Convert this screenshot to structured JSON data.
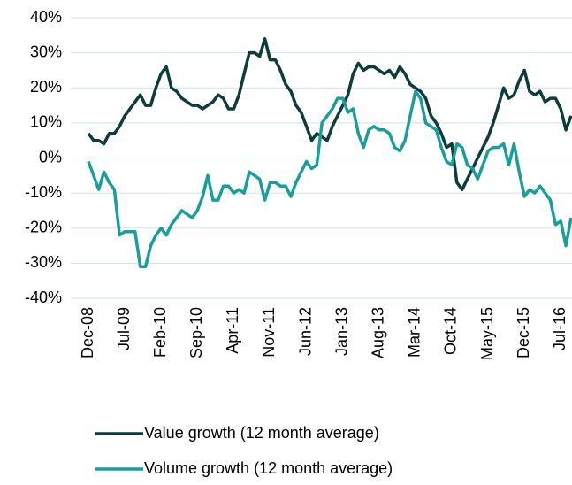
{
  "chart_data": {
    "type": "line",
    "categories": [
      "Dec-08",
      null,
      null,
      null,
      null,
      null,
      null,
      "Jul-09",
      null,
      null,
      null,
      null,
      null,
      null,
      "Feb-10",
      null,
      null,
      null,
      null,
      null,
      null,
      "Sep-10",
      null,
      null,
      null,
      null,
      null,
      null,
      "Apr-11",
      null,
      null,
      null,
      null,
      null,
      null,
      "Nov-11",
      null,
      null,
      null,
      null,
      null,
      null,
      "Jun-12",
      null,
      null,
      null,
      null,
      null,
      null,
      "Jan-13",
      null,
      null,
      null,
      null,
      null,
      null,
      "Aug-13",
      null,
      null,
      null,
      null,
      null,
      null,
      "Mar-14",
      null,
      null,
      null,
      null,
      null,
      null,
      "Oct-14",
      null,
      null,
      null,
      null,
      null,
      null,
      "May-15",
      null,
      null,
      null,
      null,
      null,
      null,
      "Dec-15",
      null,
      null,
      null,
      null,
      null,
      null,
      "Jul-16",
      null,
      null
    ],
    "series": [
      {
        "name": "Value growth (12 month average)",
        "color": "#0d3d3a",
        "values": [
          7,
          5,
          5,
          4,
          7,
          7,
          9,
          12,
          14,
          16,
          18,
          15,
          15,
          20,
          24,
          26,
          20,
          19,
          17,
          16,
          15,
          15,
          14,
          15,
          16,
          18,
          17,
          14,
          14,
          18,
          24,
          30,
          30,
          29,
          34,
          28,
          28,
          25,
          21,
          19,
          15,
          13,
          9,
          5,
          7,
          6,
          5,
          9,
          12,
          15,
          18,
          24,
          27,
          25,
          26,
          26,
          25,
          24,
          25,
          23,
          26,
          24,
          21,
          20,
          19,
          17,
          12,
          10,
          7,
          3,
          4,
          -7,
          -9,
          -6,
          -3,
          0,
          3,
          6,
          10,
          15,
          20,
          17,
          18,
          22,
          25,
          19,
          18,
          19,
          16,
          17,
          17,
          14,
          8,
          12
        ]
      },
      {
        "name": "Volume growth (12 month average)",
        "color": "#1a9e99",
        "values": [
          -1,
          -5,
          -9,
          -4,
          -7,
          -9,
          -22,
          -21,
          -21,
          -21,
          -31,
          -31,
          -25,
          -22,
          -20,
          -22,
          -19,
          -17,
          -15,
          -16,
          -17,
          -15,
          -11,
          -5,
          -12,
          -12,
          -8,
          -8,
          -10,
          -9,
          -10,
          -4,
          -5,
          -6,
          -12,
          -7,
          -7,
          -8,
          -8,
          -11,
          -7,
          -4,
          -1,
          -3,
          -2,
          10,
          12,
          14,
          17,
          17,
          13,
          14,
          7,
          3,
          8,
          9,
          8,
          8,
          7,
          3,
          2,
          5,
          12,
          19,
          17,
          10,
          9,
          8,
          3,
          -1,
          -2,
          4,
          3,
          -2,
          -3,
          -6,
          -2,
          2,
          3,
          3,
          4,
          -2,
          4,
          -4,
          -11,
          -9,
          -10,
          -8,
          -10,
          -12,
          -19,
          -18,
          -25,
          -17
        ]
      }
    ],
    "ylim": [
      -40,
      40
    ],
    "yticks": [
      {
        "value": -40,
        "label": "-40%"
      },
      {
        "value": -30,
        "label": "-30%"
      },
      {
        "value": -20,
        "label": "-20%"
      },
      {
        "value": -10,
        "label": "-10%"
      },
      {
        "value": 0,
        "label": "0%"
      },
      {
        "value": 10,
        "label": "10%"
      },
      {
        "value": 20,
        "label": "20%"
      },
      {
        "value": 30,
        "label": "30%"
      },
      {
        "value": 40,
        "label": "40%"
      }
    ],
    "grid": true
  }
}
